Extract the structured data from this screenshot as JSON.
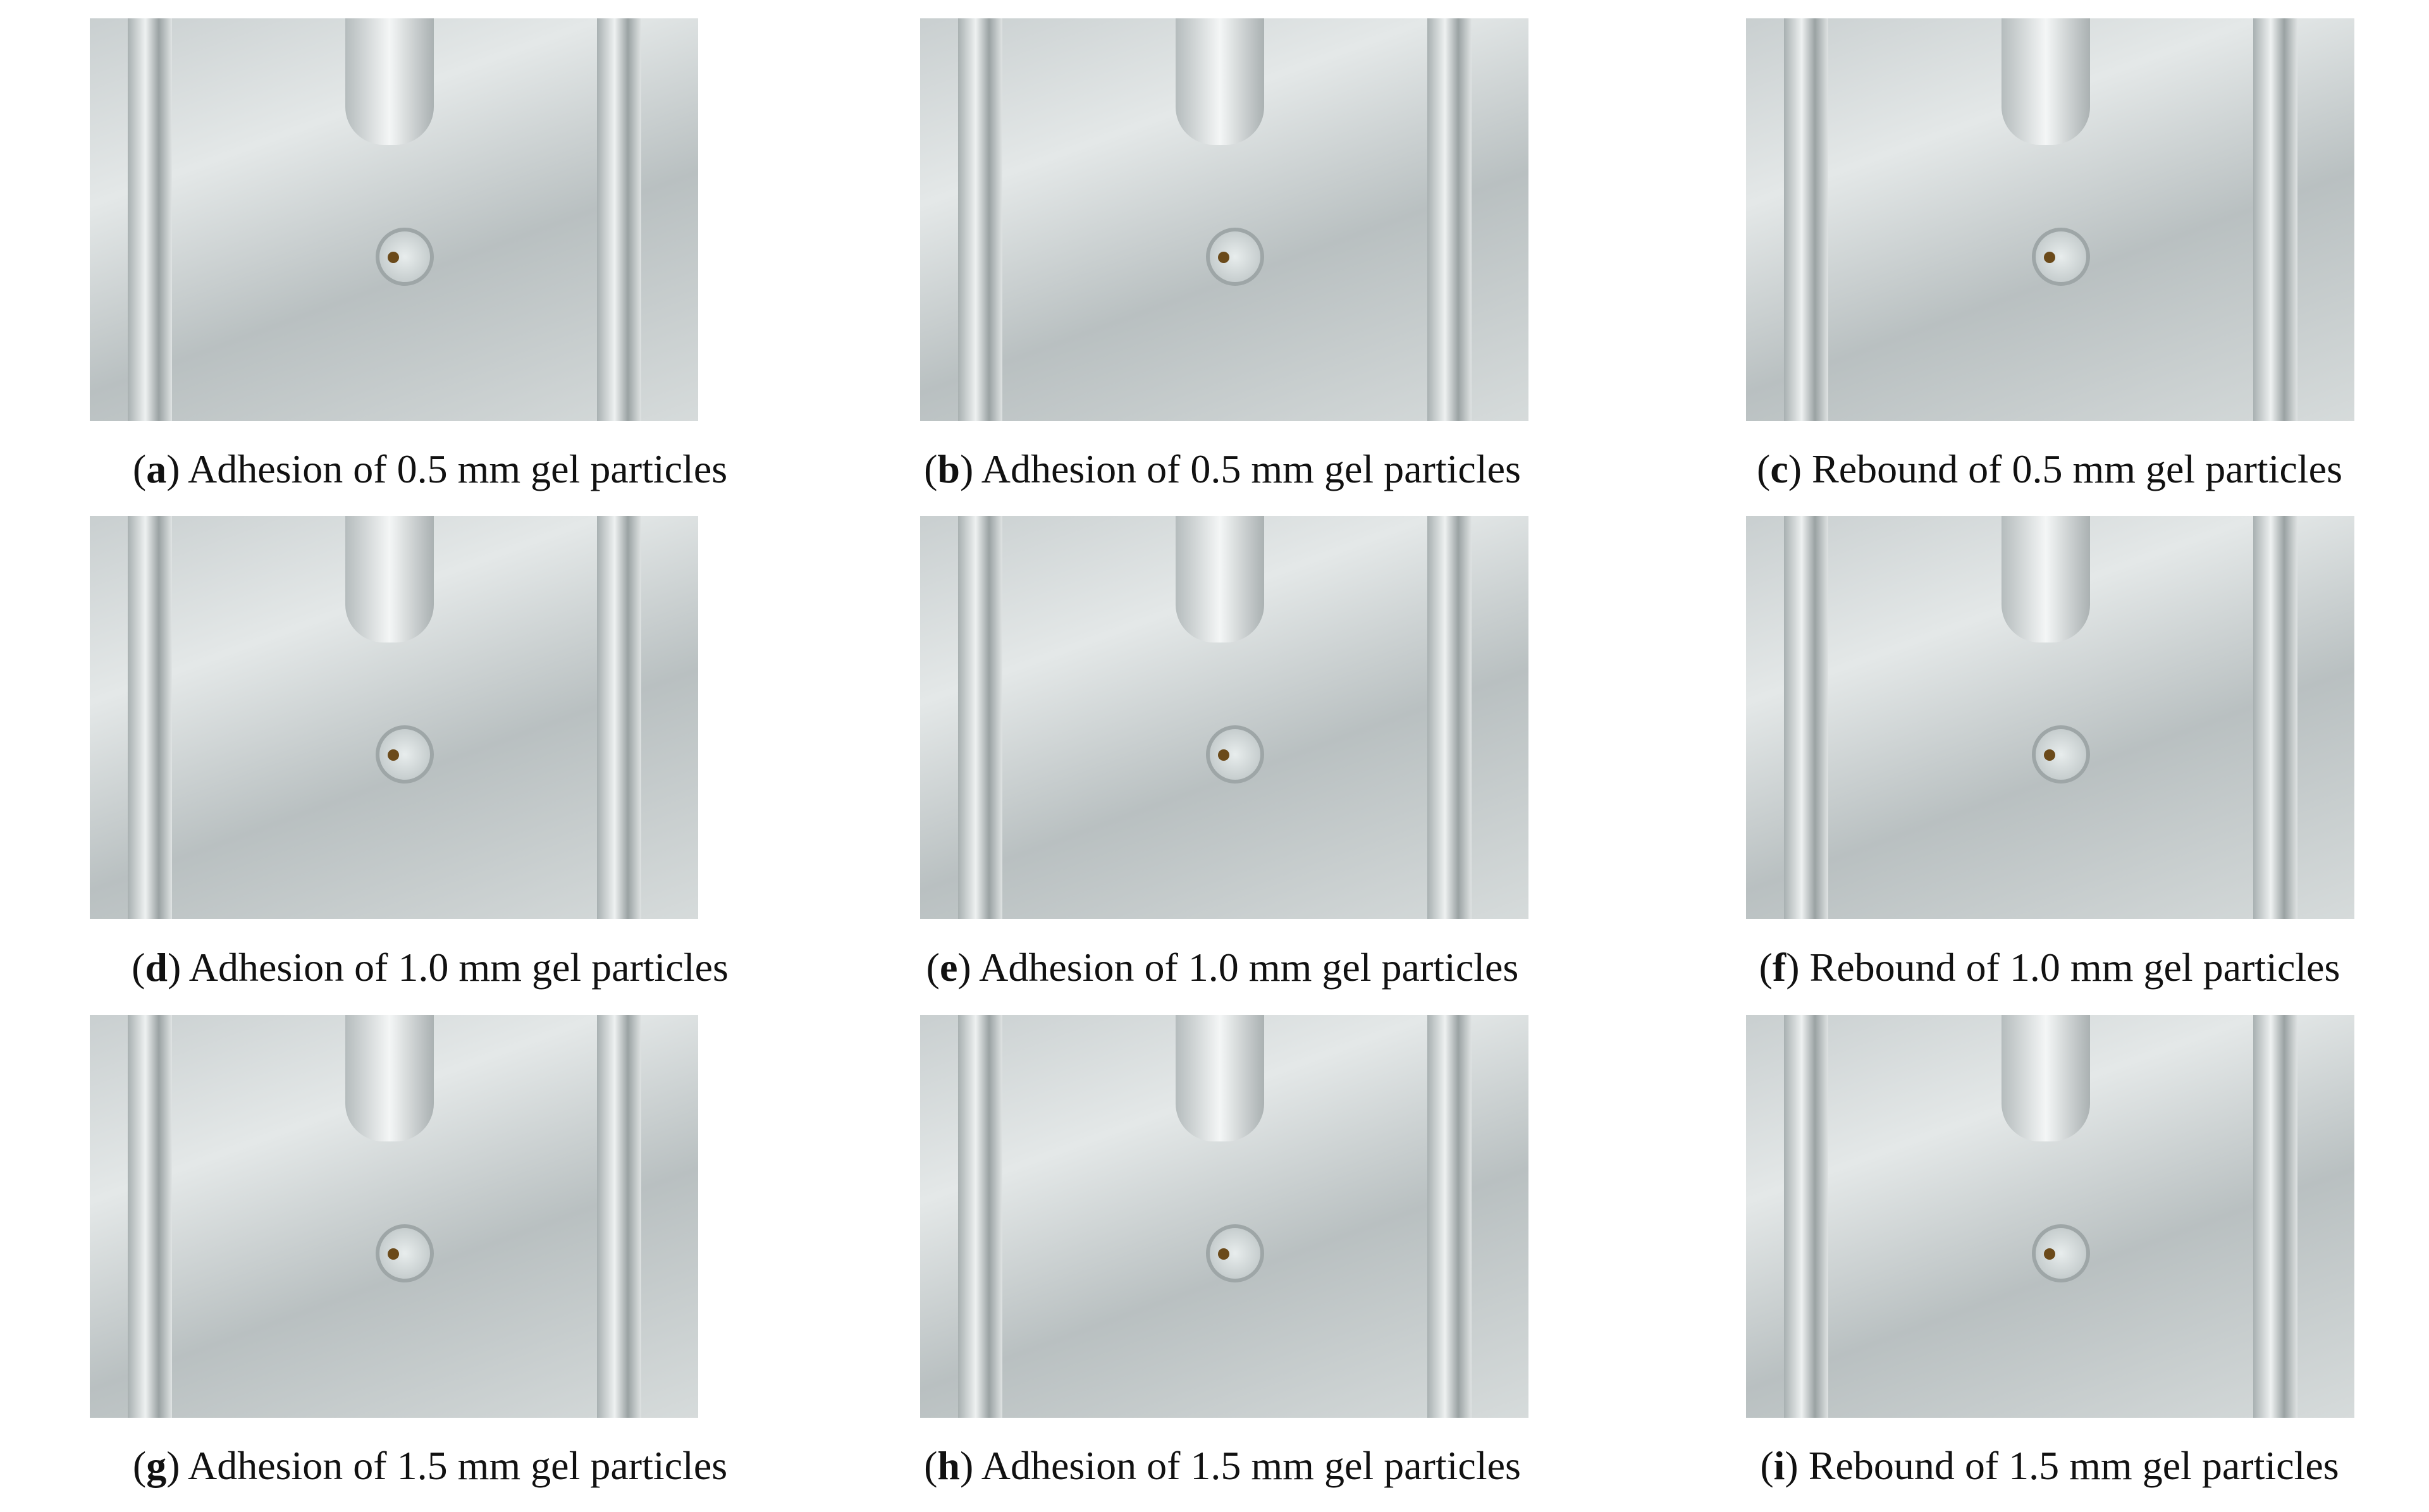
{
  "panels": [
    {
      "label": "a",
      "caption": "Adhesion of 0.5 mm gel particles"
    },
    {
      "label": "b",
      "caption": "Adhesion of 0.5 mm gel particles"
    },
    {
      "label": "c",
      "caption": "Rebound of 0.5 mm gel particles"
    },
    {
      "label": "d",
      "caption": "Adhesion of 1.0 mm gel particles"
    },
    {
      "label": "e",
      "caption": "Adhesion of 1.0 mm gel particles"
    },
    {
      "label": "f",
      "caption": "Rebound of 1.0 mm gel particles"
    },
    {
      "label": "g",
      "caption": "Adhesion of 1.5 mm gel particles"
    },
    {
      "label": "h",
      "caption": "Adhesion of 1.5 mm gel particles"
    },
    {
      "label": "i",
      "caption": "Rebound of 1.5 mm gel particles"
    }
  ]
}
